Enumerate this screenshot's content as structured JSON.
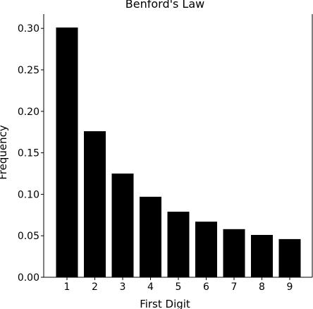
{
  "chart_data": {
    "type": "bar",
    "title": "Benford's Law",
    "xlabel": "First Digit",
    "ylabel": "Frequency",
    "categories": [
      "1",
      "2",
      "3",
      "4",
      "5",
      "6",
      "7",
      "8",
      "9"
    ],
    "values": [
      0.301,
      0.176,
      0.125,
      0.097,
      0.079,
      0.067,
      0.058,
      0.051,
      0.046
    ],
    "ylim": [
      0,
      0.32
    ],
    "yticks": [
      "0.00",
      "0.05",
      "0.10",
      "0.15",
      "0.20",
      "0.25",
      "0.30"
    ],
    "bar_color": "#000000",
    "grid": false,
    "legend": "none"
  }
}
